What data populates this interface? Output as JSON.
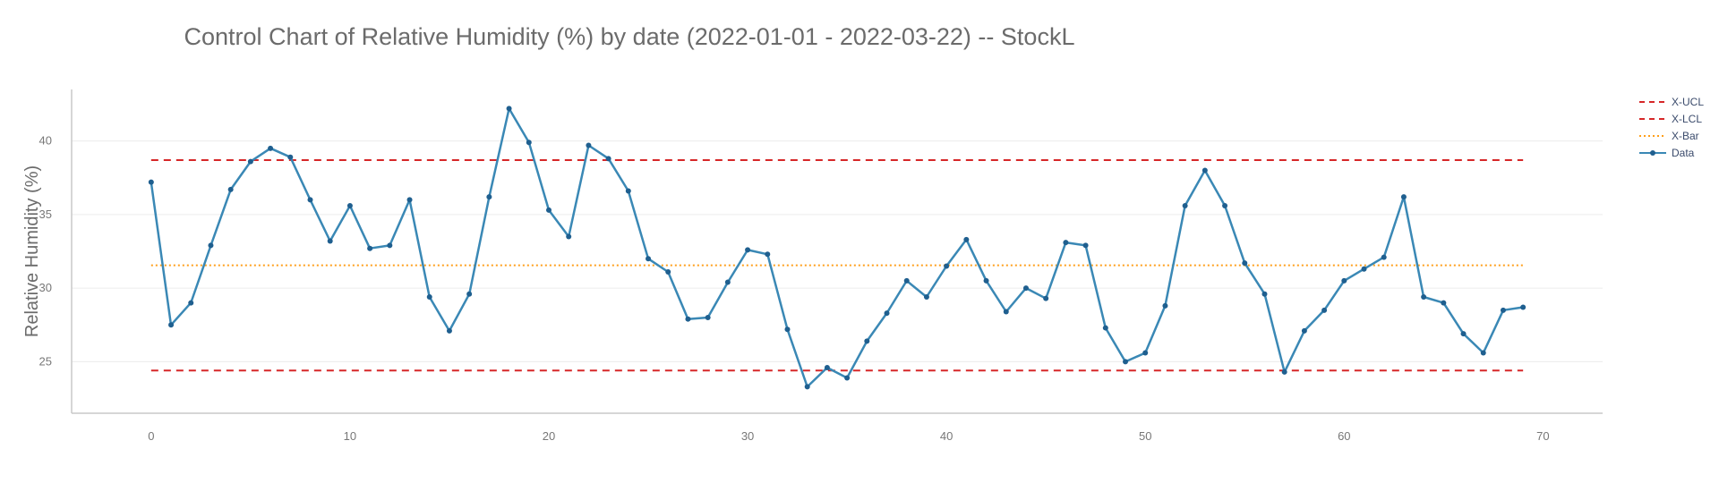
{
  "chart_data": {
    "type": "line",
    "title": "Control Chart of Relative Humidity (%) by date (2022-01-01 - 2022-03-22) -- StockL",
    "xlabel": "",
    "ylabel": "Relative Humidity (%)",
    "xlim": [
      -4,
      73
    ],
    "ylim": [
      21.5,
      43.5
    ],
    "x_ticks": [
      0,
      10,
      20,
      30,
      40,
      50,
      60,
      70
    ],
    "y_ticks": [
      25,
      30,
      35,
      40
    ],
    "grid": "horizontal",
    "legend_position": "top-right",
    "limits": [
      {
        "name": "X-UCL",
        "value": 38.7,
        "color": "#d62728",
        "style": "dashed"
      },
      {
        "name": "X-LCL",
        "value": 24.4,
        "color": "#d62728",
        "style": "dashed"
      },
      {
        "name": "X-Bar",
        "value": 31.55,
        "color": "#ff9f1a",
        "style": "dotted"
      }
    ],
    "series": [
      {
        "name": "Data",
        "color": "#3a88b5",
        "x": [
          0,
          1,
          2,
          3,
          4,
          5,
          6,
          7,
          8,
          9,
          10,
          11,
          12,
          13,
          14,
          15,
          16,
          17,
          18,
          19,
          20,
          21,
          22,
          23,
          24,
          25,
          26,
          27,
          28,
          29,
          30,
          31,
          32,
          33,
          34,
          35,
          36,
          37,
          38,
          39,
          40,
          41,
          42,
          43,
          44,
          45,
          46,
          47,
          48,
          49,
          50,
          51,
          52,
          53,
          54,
          55,
          56,
          57,
          58,
          59,
          60,
          61,
          62,
          63,
          64,
          65,
          66,
          67,
          68,
          69
        ],
        "values": [
          37.2,
          27.5,
          29.0,
          32.9,
          36.7,
          38.6,
          39.5,
          38.9,
          36.0,
          33.2,
          35.6,
          32.7,
          32.9,
          36.0,
          29.4,
          27.1,
          29.6,
          36.2,
          42.2,
          39.9,
          35.3,
          33.5,
          39.7,
          38.8,
          36.6,
          32.0,
          31.1,
          27.9,
          28.0,
          30.4,
          32.6,
          32.3,
          27.2,
          23.3,
          24.6,
          23.9,
          26.4,
          28.3,
          30.5,
          29.4,
          31.5,
          33.3,
          30.5,
          28.4,
          30.0,
          29.3,
          33.1,
          32.9,
          27.3,
          25.0,
          25.6,
          28.8,
          35.6,
          38.0,
          35.6,
          31.7,
          29.6,
          24.3,
          27.1,
          28.5,
          30.5,
          31.3,
          32.1,
          36.2,
          29.4,
          29.0,
          26.9,
          25.6,
          28.5,
          28.7
        ]
      }
    ]
  }
}
